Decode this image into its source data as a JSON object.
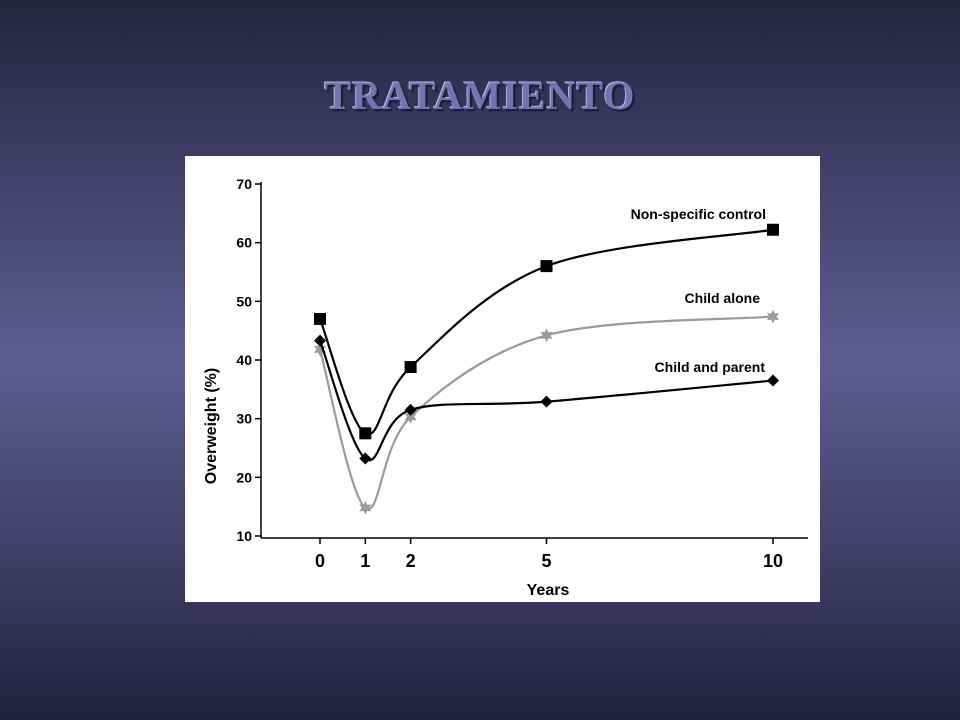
{
  "slide": {
    "title": "TRATAMIENTO"
  },
  "colors": {
    "dark_series": "#000000",
    "light_series": "#9a9a9a"
  },
  "chart_data": {
    "type": "line",
    "title": "",
    "xlabel": "Years",
    "ylabel": "Overweight (%)",
    "ylim": [
      10,
      70
    ],
    "yticks": [
      10,
      20,
      30,
      40,
      50,
      60,
      70
    ],
    "xticks": [
      0,
      1,
      2,
      5,
      10
    ],
    "grid": false,
    "series": [
      {
        "name": "Non-specific control",
        "marker": "square",
        "color": "#000000",
        "x": [
          0,
          1,
          2,
          5,
          10
        ],
        "y": [
          47,
          27.5,
          38.8,
          56,
          62.2
        ]
      },
      {
        "name": "Child alone",
        "marker": "star",
        "color": "#9a9a9a",
        "x": [
          0,
          1,
          2,
          5,
          10
        ],
        "y": [
          41.8,
          14.8,
          30.3,
          44.2,
          47.4
        ]
      },
      {
        "name": "Child and parent",
        "marker": "diamond",
        "color": "#000000",
        "x": [
          0,
          1,
          2,
          5,
          10
        ],
        "y": [
          43.3,
          23.2,
          31.5,
          32.9,
          36.5
        ]
      }
    ]
  }
}
